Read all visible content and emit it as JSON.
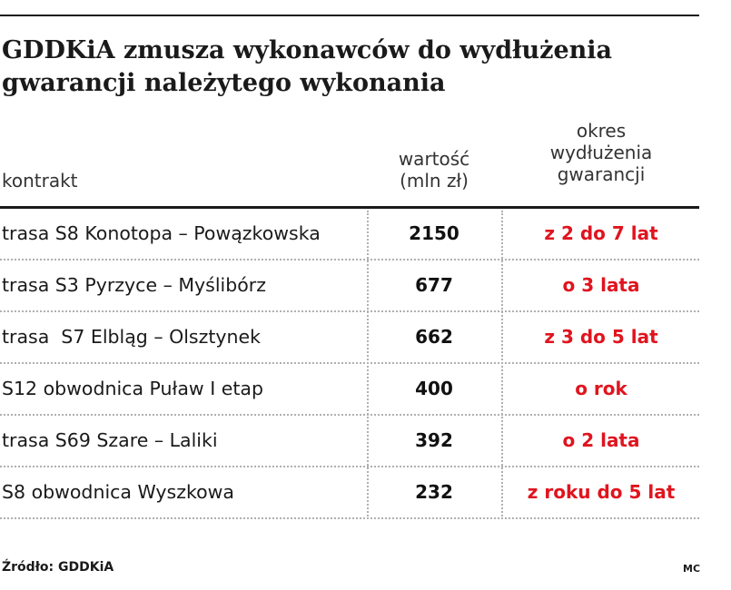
{
  "title": "GDDKiA zmusza wykonawców do wydłużenia gwarancji należytego wykonania",
  "headers": {
    "contract": "kontrakt",
    "value": "wartość\n(mln zł)",
    "period": "okres\nwydłużenia\ngwarancji"
  },
  "rows": [
    {
      "contract": "trasa S8 Konotopa – Powązkowska",
      "value": "2150",
      "period": "z 2 do 7 lat"
    },
    {
      "contract": "trasa S3 Pyrzyce – Myślibórz",
      "value": "677",
      "period": "o 3 lata"
    },
    {
      "contract": "trasa  S7 Elbląg – Olsztynek",
      "value": "662",
      "period": "z 3 do 5 lat"
    },
    {
      "contract": "S12 obwodnica Puław I etap",
      "value": "400",
      "period": "o rok"
    },
    {
      "contract": "trasa S69 Szare – Laliki",
      "value": "392",
      "period": "o 2 lata"
    },
    {
      "contract": "S8 obwodnica Wyszkowa",
      "value": "232",
      "period": "z roku do 5 lat"
    }
  ],
  "source": "Źródło: GDDKiA",
  "credit": "MC",
  "colors": {
    "accent_red": "#e0141e",
    "text": "#1a1a1a",
    "rule": "#1a1a1a",
    "dotted_separator": "#b0b0b0"
  },
  "chart_data": {
    "type": "table",
    "title": "GDDKiA zmusza wykonawców do wydłużenia gwarancji należytego wykonania",
    "columns": [
      "kontrakt",
      "wartość (mln zł)",
      "okres wydłużenia gwarancji"
    ],
    "rows": [
      [
        "trasa S8 Konotopa – Powązkowska",
        2150,
        "z 2 do 7 lat"
      ],
      [
        "trasa S3 Pyrzyce – Myślibórz",
        677,
        "o 3 lata"
      ],
      [
        "trasa  S7 Elbląg – Olsztynek",
        662,
        "z 3 do 5 lat"
      ],
      [
        "S12 obwodnica Puław I etap",
        400,
        "o rok"
      ],
      [
        "trasa S69 Szare – Laliki",
        392,
        "o 2 lata"
      ],
      [
        "S8 obwodnica Wyszkowa",
        232,
        "z roku do 5 lat"
      ]
    ]
  }
}
